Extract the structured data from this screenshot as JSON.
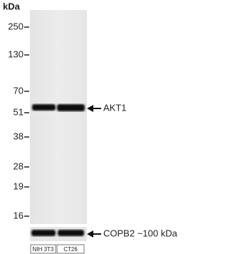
{
  "blot": {
    "unit": "kDa",
    "markers": [
      "250",
      "130",
      "70",
      "51",
      "38",
      "28",
      "19",
      "16"
    ],
    "bands": [
      "AKT1",
      "COPB2 ~100 kDa"
    ],
    "lanes": [
      "NIH 3T3",
      "CT26"
    ]
  }
}
